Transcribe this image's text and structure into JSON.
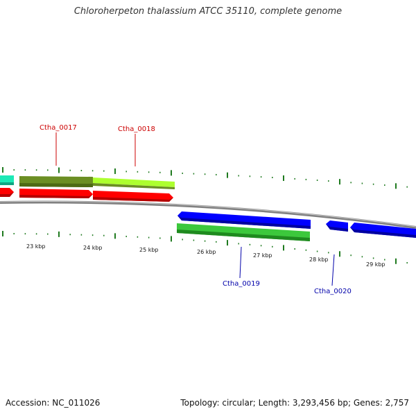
{
  "title": "Chloroherpeton thalassium ATCC 35110, complete genome",
  "accession": "Accession: NC_011026",
  "topology": "Topology: circular; Length: 3,293,456 bp; Genes: 2,757",
  "colors": {
    "cds_forward": "#ff0000",
    "cds_reverse": "#0000ff",
    "gene_green": "#3cc83c",
    "gene_olive": "#6b8e23",
    "gene_lime": "#adff2f",
    "gene_teal": "#1de9b6",
    "tick": "#1f7a1f",
    "backbone": "#808080",
    "label_forward": "#cc0000",
    "label_reverse": "#0000aa"
  },
  "kbp_labels": [
    "23 kbp",
    "24 kbp",
    "25 kbp",
    "26 kbp",
    "27 kbp",
    "28 kbp",
    "29 kbp"
  ],
  "gene_labels": [
    {
      "text": "Ctha_0017",
      "strand": "forward"
    },
    {
      "text": "Ctha_0018",
      "strand": "forward"
    },
    {
      "text": "Ctha_0019",
      "strand": "reverse"
    },
    {
      "text": "Ctha_0020",
      "strand": "reverse"
    }
  ]
}
